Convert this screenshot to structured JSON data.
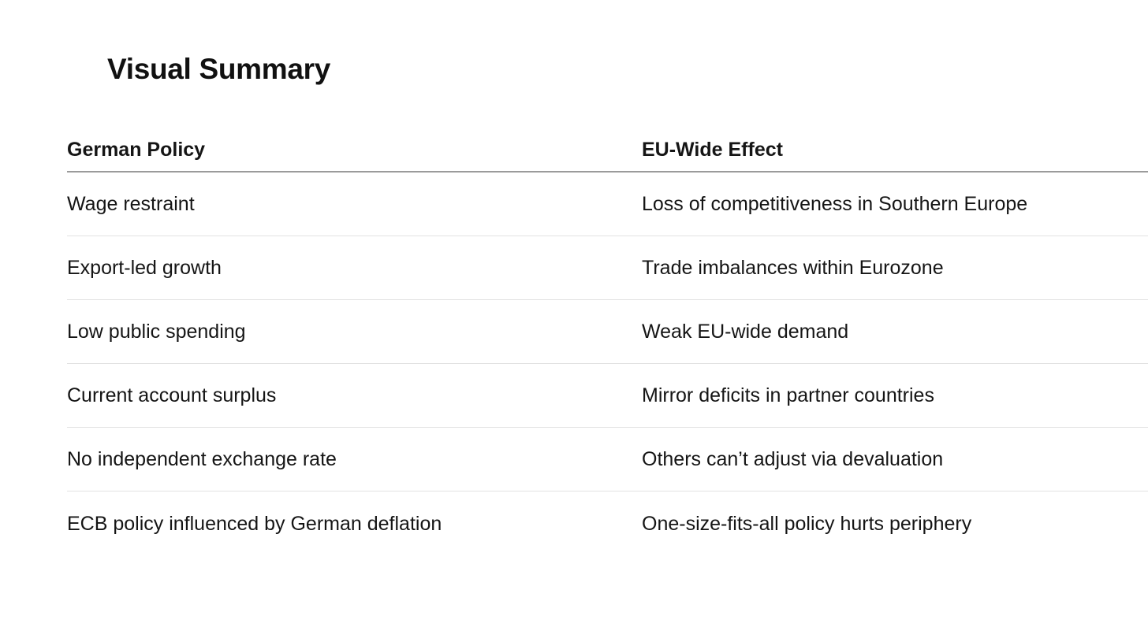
{
  "page": {
    "title": "Visual Summary"
  },
  "table": {
    "headers": [
      "German Policy",
      "EU-Wide Effect"
    ],
    "rows": [
      [
        "Wage restraint",
        "Loss of competitiveness in Southern Europe"
      ],
      [
        "Export-led growth",
        "Trade imbalances within Eurozone"
      ],
      [
        "Low public spending",
        "Weak EU-wide demand"
      ],
      [
        "Current account surplus",
        "Mirror deficits in partner countries"
      ],
      [
        "No independent exchange rate",
        "Others can’t adjust via devaluation"
      ],
      [
        "ECB policy influenced by German deflation",
        "One-size-fits-all policy hurts periphery"
      ]
    ]
  },
  "colors": {
    "text": "#111111",
    "header_divider": "#9b9b9b",
    "row_divider": "#e2e2e2",
    "background": "#ffffff"
  }
}
